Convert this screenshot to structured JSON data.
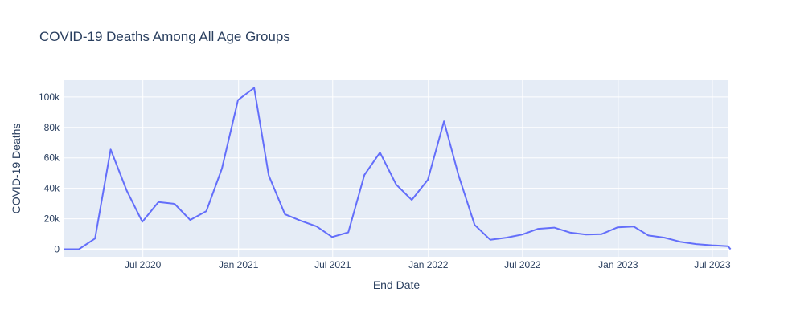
{
  "chart_data": {
    "type": "line",
    "title": "COVID-19 Deaths Among All Age Groups",
    "xlabel": "End Date",
    "ylabel": "COVID-19 Deaths",
    "xlim": [
      "2020-02-01",
      "2023-08-01"
    ],
    "ylim": [
      -5000,
      111000
    ],
    "yticks": [
      0,
      20000,
      40000,
      60000,
      80000,
      100000
    ],
    "ytick_labels": [
      "0",
      "20k",
      "40k",
      "60k",
      "80k",
      "100k"
    ],
    "xticks": [
      "2020-07-01",
      "2021-01-01",
      "2021-07-01",
      "2022-01-01",
      "2022-07-01",
      "2023-01-01",
      "2023-07-01"
    ],
    "xtick_labels": [
      "Jul 2020",
      "Jan 2021",
      "Jul 2021",
      "Jan 2022",
      "Jul 2022",
      "Jan 2023",
      "Jul 2023"
    ],
    "grid": true,
    "colors": {
      "plot_bg": "#e5ecf6",
      "grid": "#ffffff",
      "line": "#636efa",
      "text": "#2a3f5f"
    },
    "series": [
      {
        "x": [
          "2020-01-31",
          "2020-02-29",
          "2020-03-31",
          "2020-04-30",
          "2020-05-31",
          "2020-06-30",
          "2020-07-31",
          "2020-08-31",
          "2020-09-30",
          "2020-10-31",
          "2020-11-30",
          "2020-12-31",
          "2021-01-31",
          "2021-02-28",
          "2021-03-31",
          "2021-04-30",
          "2021-05-31",
          "2021-06-30",
          "2021-07-31",
          "2021-08-31",
          "2021-09-30",
          "2021-10-31",
          "2021-11-30",
          "2021-12-31",
          "2022-01-31",
          "2022-02-28",
          "2022-03-31",
          "2022-04-30",
          "2022-05-31",
          "2022-06-30",
          "2022-07-31",
          "2022-08-31",
          "2022-09-30",
          "2022-10-31",
          "2022-11-30",
          "2022-12-31",
          "2023-01-31",
          "2023-02-28",
          "2023-03-31",
          "2023-04-30",
          "2023-05-31",
          "2023-06-30",
          "2023-07-31",
          "2023-08-05"
        ],
        "y": [
          0,
          0,
          7000,
          65500,
          38500,
          18000,
          31000,
          29800,
          19200,
          25000,
          53000,
          98000,
          106000,
          48500,
          23000,
          18800,
          15000,
          8000,
          11100,
          48800,
          63500,
          42500,
          32400,
          45600,
          84000,
          48500,
          16000,
          6200,
          7600,
          9600,
          13400,
          14200,
          11000,
          9600,
          9900,
          14400,
          14900,
          9000,
          7600,
          4900,
          3400,
          2600,
          2000,
          0
        ]
      }
    ]
  }
}
